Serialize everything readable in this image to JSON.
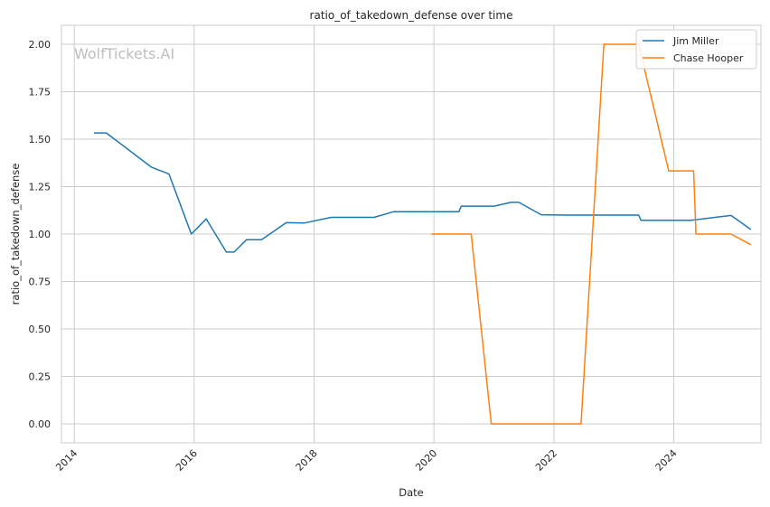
{
  "watermark": "WolfTickets.AI",
  "chart_data": {
    "type": "line",
    "title": "ratio_of_takedown_defense over time",
    "xlabel": "Date",
    "ylabel": "ratio_of_takedown_defense",
    "xlim": [
      "2013-10-15",
      "2025-06-15"
    ],
    "ylim": [
      -0.1,
      2.1
    ],
    "x_ticks": [
      "2014",
      "2016",
      "2018",
      "2020",
      "2022",
      "2024"
    ],
    "y_ticks": [
      "0.00",
      "0.25",
      "0.50",
      "0.75",
      "1.00",
      "1.25",
      "1.50",
      "1.75",
      "2.00"
    ],
    "grid": true,
    "legend_position": "top-right",
    "series": [
      {
        "name": "Jim Miller",
        "color": "#1f77b4",
        "points": [
          [
            "2014-05-01",
            1.533
          ],
          [
            "2014-07-15",
            1.533
          ],
          [
            "2015-04-15",
            1.353
          ],
          [
            "2015-08-01",
            1.316
          ],
          [
            "2015-12-15",
            1.0
          ],
          [
            "2016-03-15",
            1.08
          ],
          [
            "2016-07-15",
            0.905
          ],
          [
            "2016-09-01",
            0.905
          ],
          [
            "2016-11-15",
            0.97
          ],
          [
            "2017-02-15",
            0.97
          ],
          [
            "2017-07-15",
            1.06
          ],
          [
            "2017-11-01",
            1.058
          ],
          [
            "2018-04-15",
            1.088
          ],
          [
            "2019-01-01",
            1.088
          ],
          [
            "2019-05-01",
            1.118
          ],
          [
            "2020-06-01",
            1.118
          ],
          [
            "2020-06-15",
            1.147
          ],
          [
            "2021-01-01",
            1.147
          ],
          [
            "2021-04-15",
            1.167
          ],
          [
            "2021-06-01",
            1.167
          ],
          [
            "2021-10-15",
            1.102
          ],
          [
            "2022-03-15",
            1.1
          ],
          [
            "2023-06-01",
            1.1
          ],
          [
            "2023-06-15",
            1.073
          ],
          [
            "2024-04-15",
            1.073
          ],
          [
            "2024-12-15",
            1.098
          ],
          [
            "2025-04-15",
            1.024
          ]
        ]
      },
      {
        "name": "Chase Hooper",
        "color": "#ff7f0e",
        "points": [
          [
            "2019-12-15",
            1.0
          ],
          [
            "2020-08-15",
            1.0
          ],
          [
            "2020-12-15",
            0.0
          ],
          [
            "2022-06-15",
            0.0
          ],
          [
            "2022-11-01",
            2.0
          ],
          [
            "2023-06-01",
            2.0
          ],
          [
            "2023-12-01",
            1.333
          ],
          [
            "2024-05-01",
            1.333
          ],
          [
            "2024-05-15",
            1.0
          ],
          [
            "2024-12-15",
            1.0
          ],
          [
            "2025-04-15",
            0.944
          ]
        ]
      }
    ]
  }
}
